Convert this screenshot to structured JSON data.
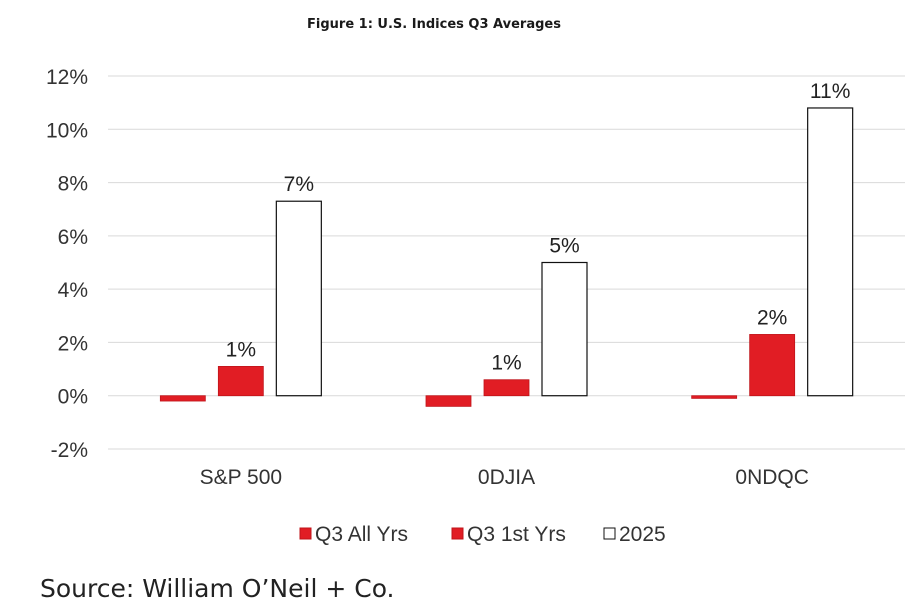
{
  "figure_title": "Figure 1: U.S. Indices Q3 Averages",
  "source": "Source: William O’Neil + Co.",
  "chart_data": {
    "type": "bar",
    "title": "Figure 1: U.S. Indices Q3 Averages",
    "categories": [
      "S&P 500",
      "0DJIA",
      "0NDQC"
    ],
    "series": [
      {
        "name": "Q3 All Yrs",
        "values": [
          -0.2,
          -0.4,
          -0.1
        ],
        "color": "#e11d24",
        "data_labels": [
          "",
          "",
          ""
        ]
      },
      {
        "name": "Q3 1st Yrs",
        "values": [
          1.1,
          0.6,
          2.3
        ],
        "color": "#e11d24",
        "data_labels": [
          "1%",
          "1%",
          "2%"
        ]
      },
      {
        "name": "2025",
        "values": [
          7.3,
          5.0,
          10.8
        ],
        "color": "#ffffff",
        "data_labels": [
          "7%",
          "5%",
          "11%"
        ]
      }
    ],
    "ylim": [
      -2,
      12
    ],
    "yticks": [
      12,
      10,
      8,
      6,
      4,
      2,
      0,
      -2
    ],
    "ytick_labels": [
      "12%",
      "10%",
      "8%",
      "6%",
      "4%",
      "2%",
      "0%",
      "-2%"
    ],
    "xlabel": "",
    "ylabel": "",
    "grid": true,
    "legend_position": "bottom"
  }
}
